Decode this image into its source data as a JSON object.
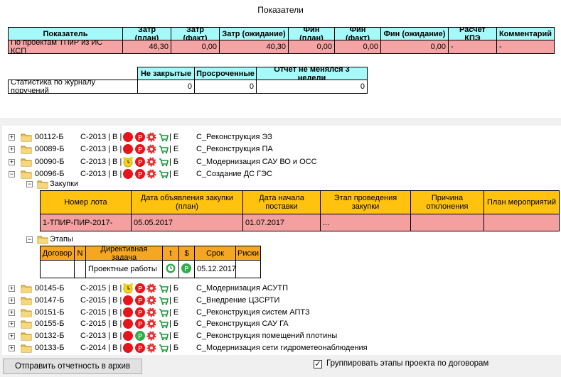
{
  "title": "Показатели",
  "summary_table": {
    "columns": [
      "Показатель",
      "Затр (план)",
      "Затр (факт)",
      "Затр (ожидание)",
      "Фин (план)",
      "Фин (факт)",
      "Фин (ожидание)",
      "Расчет КПЭ",
      "Комментарий"
    ],
    "rows": [
      [
        "По проектам ТПиР из ИС КСП",
        "46,30",
        "0,00",
        "40,30",
        "0,00",
        "0,00",
        "0,00",
        "-",
        "-"
      ]
    ]
  },
  "stats_table": {
    "columns": [
      "Не закрытые",
      "Просроченные",
      "Отчет не менялся 3 недели"
    ],
    "rows": [
      [
        "Статистика по журналу поручений",
        "0",
        "0",
        "0"
      ]
    ]
  },
  "tree": {
    "items": [
      {
        "code": "00112-Б",
        "period": "С-2013 | В |",
        "flag": "| Е",
        "name": "С_Реконструкция ЭЗ"
      },
      {
        "code": "00089-Б",
        "period": "С-2013 | В |",
        "flag": "| Е",
        "name": "С_Реконструкция ПА"
      },
      {
        "code": "00090-Б",
        "period": "С-2013 | В |",
        "flag": "| Б",
        "name": "С_Модернизация САУ ВО и ОСС"
      },
      {
        "code": "00096-Б",
        "period": "С-2013 | В |",
        "flag": "| Е",
        "name": "С_Создание ДС ГЭС",
        "expanded": true
      },
      {
        "code": "00145-Б",
        "period": "С-2015 | В |",
        "flag": "| Б",
        "name": "С_Модернизация АСУТП"
      },
      {
        "code": "00147-Б",
        "period": "С-2015 | В |",
        "flag": "| Е",
        "name": "С_Внедрение ЦЗСРТИ"
      },
      {
        "code": "00151-Б",
        "period": "С-2015 | В |",
        "flag": "| Е",
        "name": "С_Реконструкция систем АПТЗ"
      },
      {
        "code": "00155-Б",
        "period": "С-2015 | В |",
        "flag": "| Б",
        "name": "С_Реконструкция САУ ГА"
      },
      {
        "code": "00132-Б",
        "period": "С-2013 | В |",
        "flag": "| Е",
        "name": "С_Реконструкция помещений плотины"
      },
      {
        "code": "00133-Б",
        "period": "С-2014 | В |",
        "flag": "| Б",
        "name": "С_Модернизация сети гидрометеонаблюдения"
      }
    ],
    "purchases": {
      "label": "Закупки",
      "columns": [
        "Номер лота",
        "Дата объявления закупки (план)",
        "Дата начала поставки",
        "Этап проведения закупки",
        "Причина отклонения",
        "План мероприятий"
      ],
      "rows": [
        {
          "lot": "1-ТПИР-ПИР-2017-",
          "announce": "05.05.2017",
          "start": "01.07.2017",
          "stage": "..."
        }
      ]
    },
    "stages": {
      "label": "Этапы",
      "columns": [
        "Договор",
        "N",
        "Директивная задача",
        "t",
        "$",
        "Срок",
        "Риски"
      ],
      "rows": [
        {
          "task": "Проектные работы",
          "deadline": "05.12.2017"
        }
      ]
    }
  },
  "footer": {
    "button": "Отправить отчетность в архив",
    "checkbox": "Группировать этапы проекта по договорам"
  }
}
